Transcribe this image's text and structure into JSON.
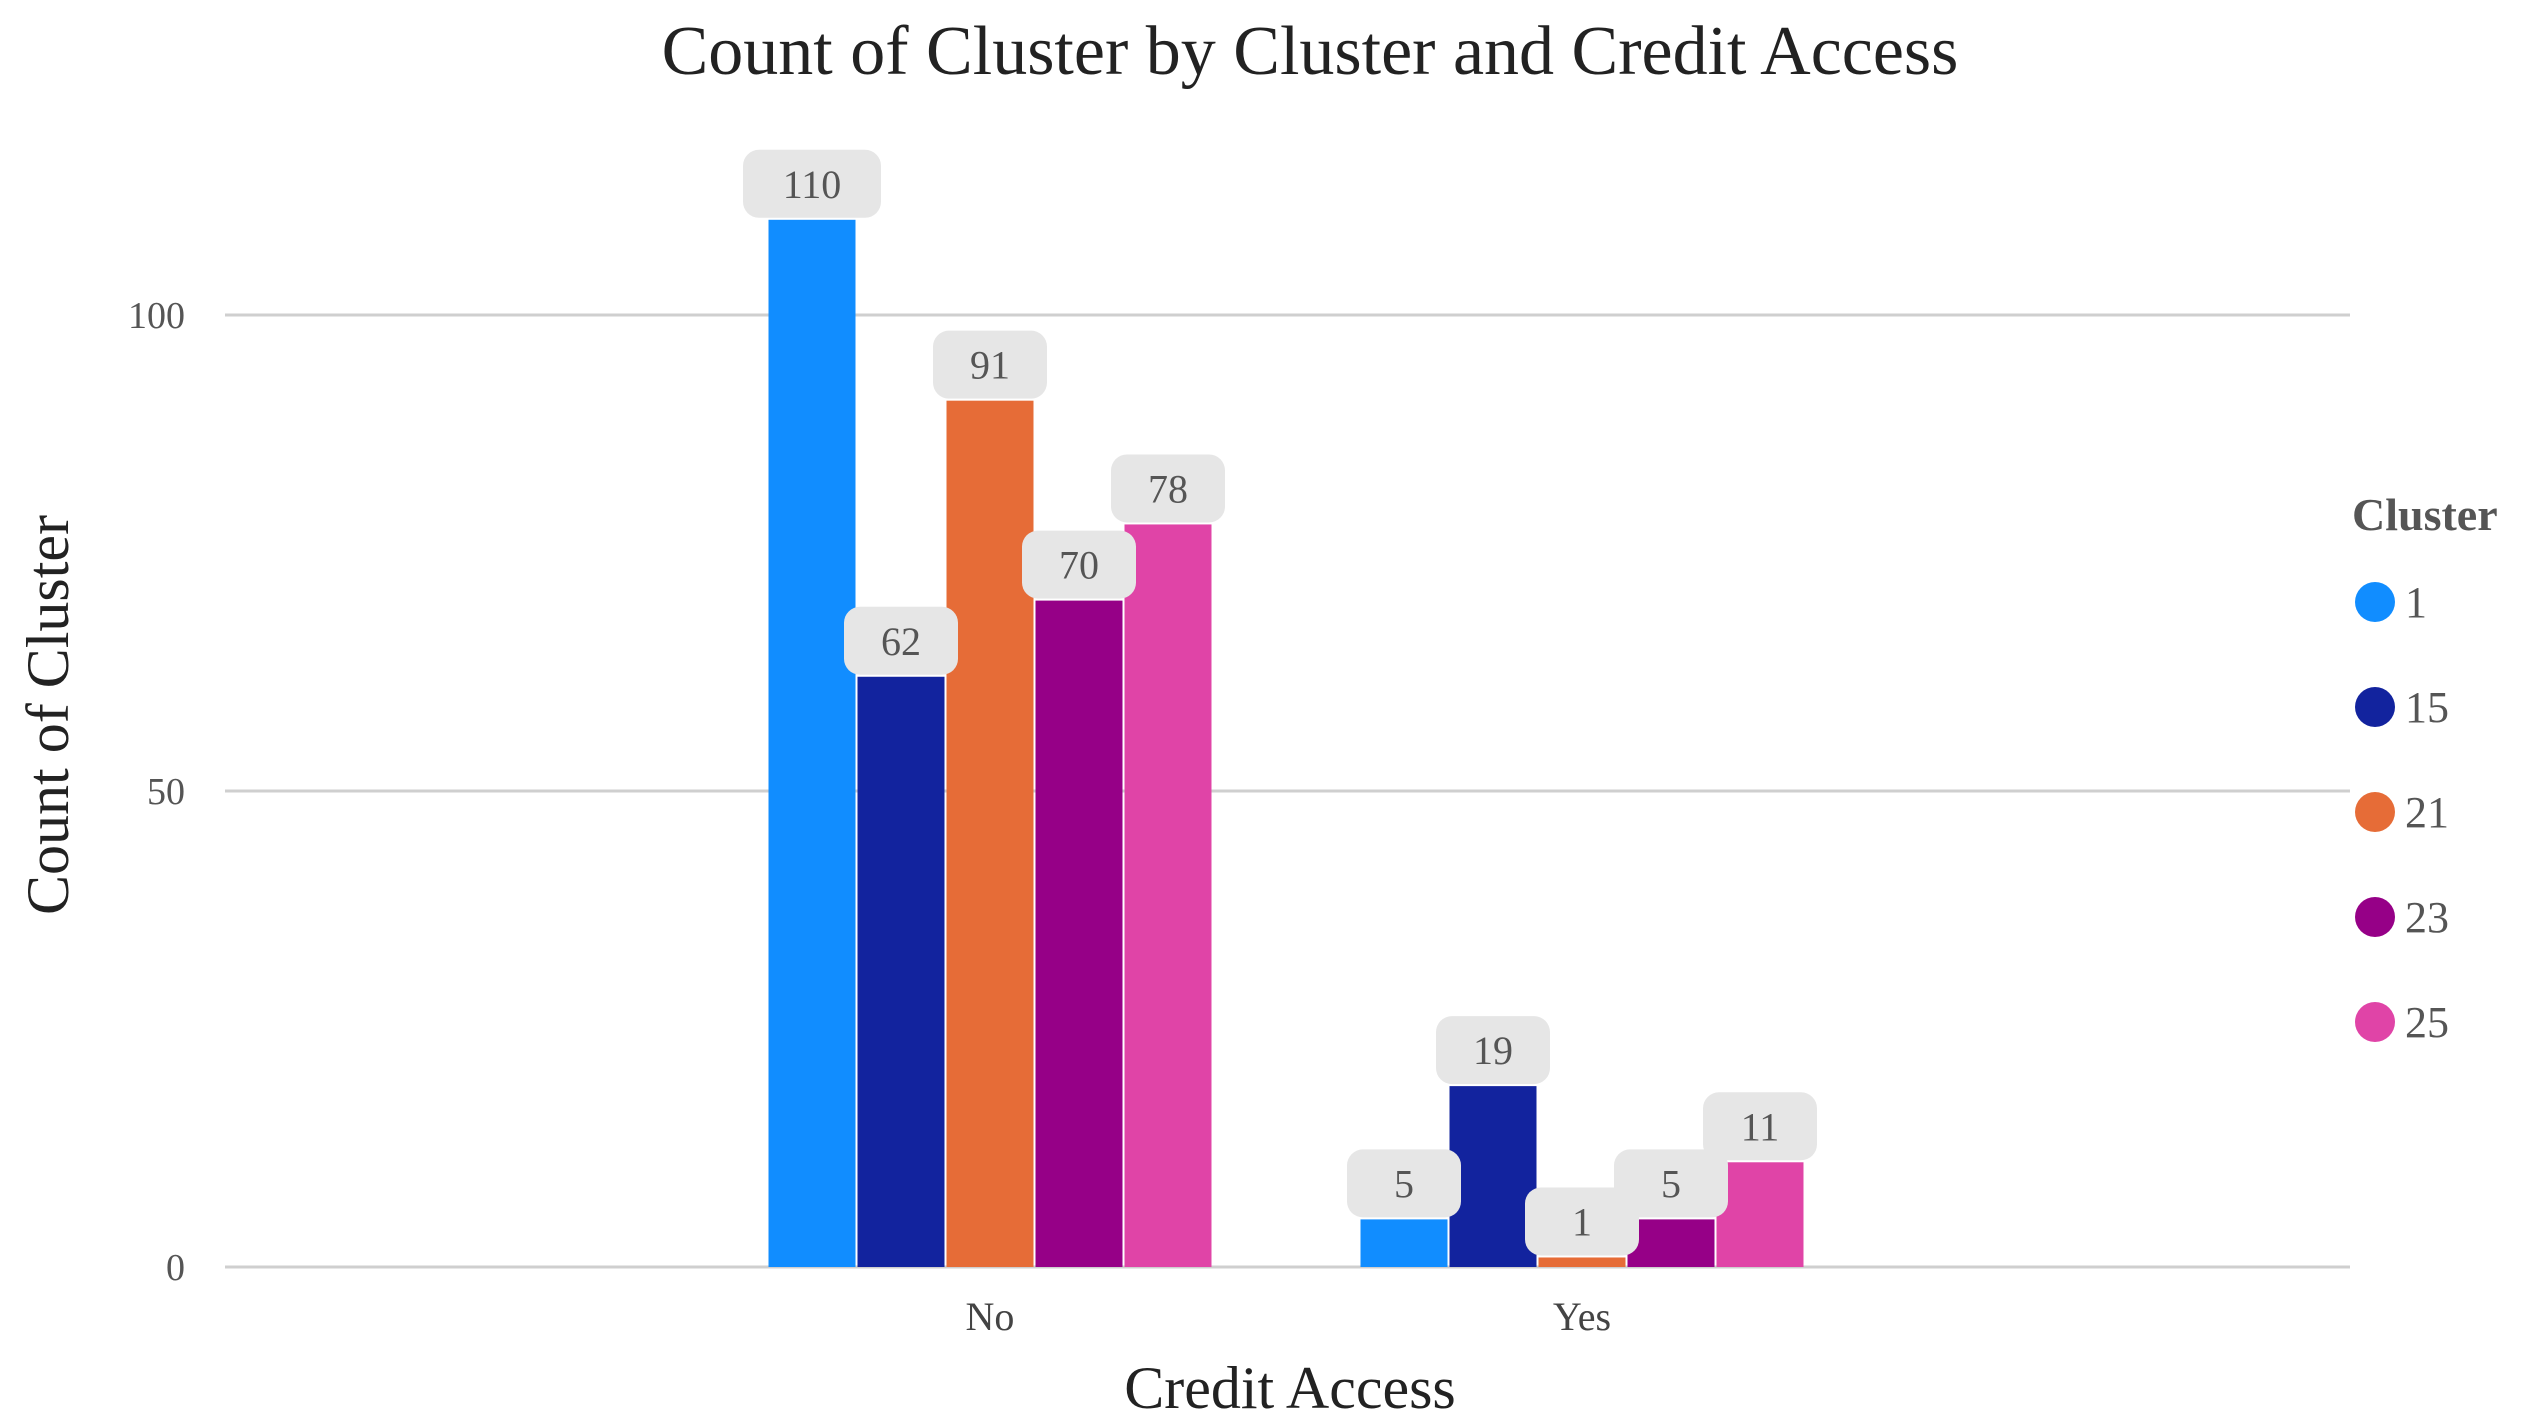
{
  "chart_data": {
    "type": "bar",
    "title": "Count of Cluster by Cluster and Credit Access",
    "xlabel": "Credit Access",
    "ylabel": "Count of Cluster",
    "categories": [
      "No",
      "Yes"
    ],
    "ylim": [
      0,
      110
    ],
    "yticks": [
      0,
      50,
      100
    ],
    "grid": true,
    "legend_title": "Cluster",
    "legend_position": "right",
    "series": [
      {
        "name": "1",
        "color": "#118DFF",
        "values": [
          110,
          5
        ]
      },
      {
        "name": "15",
        "color": "#12239E",
        "values": [
          62,
          19
        ]
      },
      {
        "name": "21",
        "color": "#E66C37",
        "values": [
          91,
          1
        ]
      },
      {
        "name": "23",
        "color": "#960087",
        "values": [
          70,
          5
        ]
      },
      {
        "name": "25",
        "color": "#E044A7",
        "values": [
          78,
          11
        ]
      }
    ]
  }
}
